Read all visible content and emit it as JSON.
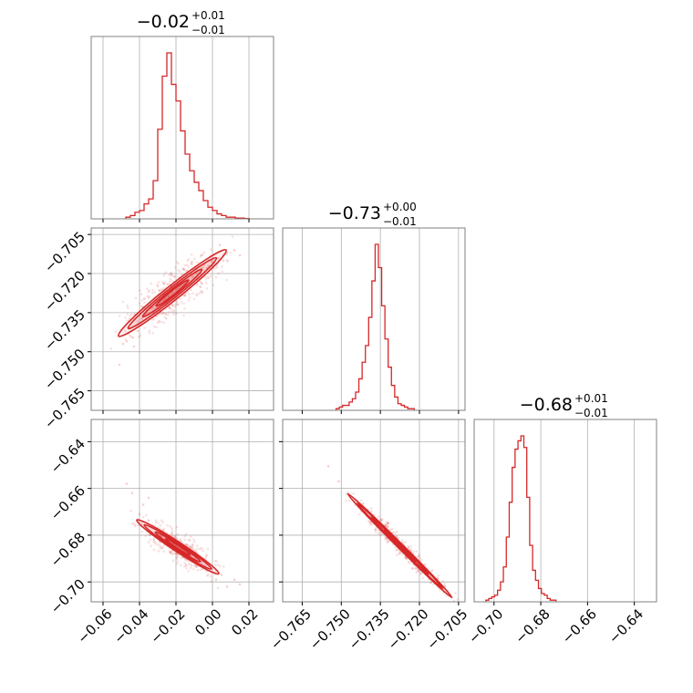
{
  "chart_data": {
    "type": "corner",
    "color": "#d62728",
    "titles": [
      {
        "value": "−0.02",
        "plus": "+0.01",
        "minus": "−0.01"
      },
      {
        "value": "−0.73",
        "plus": "+0.00",
        "minus": "−0.01"
      },
      {
        "value": "−0.68",
        "plus": "+0.01",
        "minus": "−0.01"
      }
    ],
    "params": [
      {
        "range": [
          -0.0665,
          0.0335
        ],
        "ticks": [
          -0.06,
          -0.04,
          -0.02,
          0.0,
          0.02
        ],
        "tick_labels": [
          "−0.06",
          "−0.04",
          "−0.02",
          "0.00",
          "0.02"
        ]
      },
      {
        "range": [
          -0.7725,
          -0.7025
        ],
        "ticks": [
          -0.765,
          -0.75,
          -0.735,
          -0.72,
          -0.705
        ],
        "tick_labels": [
          "−0.765",
          "−0.750",
          "−0.735",
          "−0.720",
          "−0.705"
        ]
      },
      {
        "range": [
          -0.7085,
          -0.6305
        ],
        "ticks": [
          -0.7,
          -0.68,
          -0.66,
          -0.64
        ],
        "tick_labels": [
          "−0.70",
          "−0.68",
          "−0.66",
          "−0.64"
        ]
      }
    ],
    "histograms": [
      {
        "edges_start": -0.0475,
        "bin_width": 0.0025,
        "counts": [
          0.01,
          0.02,
          0.04,
          0.05,
          0.09,
          0.12,
          0.23,
          0.54,
          0.86,
          1.0,
          0.81,
          0.71,
          0.53,
          0.39,
          0.29,
          0.22,
          0.17,
          0.11,
          0.07,
          0.05,
          0.03,
          0.02,
          0.01,
          0.01,
          0.005,
          0.005,
          0.002
        ]
      },
      {
        "edges_start": -0.752,
        "bin_width": 0.00125,
        "counts": [
          0.01,
          0.02,
          0.03,
          0.03,
          0.05,
          0.07,
          0.11,
          0.19,
          0.29,
          0.39,
          0.56,
          0.78,
          1.0,
          0.86,
          0.63,
          0.43,
          0.26,
          0.15,
          0.08,
          0.04,
          0.03,
          0.02,
          0.01,
          0.01
        ]
      },
      {
        "edges_start": -0.7035,
        "bin_width": 0.00125,
        "counts": [
          0.01,
          0.02,
          0.03,
          0.04,
          0.07,
          0.12,
          0.21,
          0.39,
          0.6,
          0.81,
          0.92,
          0.97,
          1.0,
          0.93,
          0.63,
          0.34,
          0.19,
          0.13,
          0.08,
          0.05,
          0.04,
          0.02,
          0.01,
          0.01
        ]
      }
    ],
    "pairs": [
      {
        "x_param": 0,
        "y_param": 1,
        "center": [
          -0.022,
          -0.7275
        ],
        "axis_dir": [
          0.0295,
          0.0165
        ],
        "half_length": 1.0,
        "half_width": 0.0022,
        "outliers": [
          [
            -0.047,
            -0.746
          ],
          [
            -0.045,
            -0.744
          ],
          [
            -0.051,
            -0.755
          ],
          [
            -0.049,
            -0.747
          ],
          [
            -0.006,
            -0.713
          ],
          [
            0.004,
            -0.709
          ],
          [
            0.008,
            -0.712
          ],
          [
            0.012,
            -0.711
          ],
          [
            0.001,
            -0.716
          ],
          [
            -0.003,
            -0.718
          ],
          [
            -0.041,
            -0.742
          ],
          [
            -0.043,
            -0.748
          ],
          [
            0.015,
            -0.713
          ],
          [
            0.006,
            -0.715
          ]
        ]
      },
      {
        "x_param": 0,
        "y_param": 2,
        "center": [
          -0.019,
          -0.685
        ],
        "axis_dir": [
          0.0225,
          -0.0115
        ],
        "half_length": 1.0,
        "half_width": 0.0016,
        "outliers": [
          [
            -0.047,
            -0.658
          ],
          [
            -0.044,
            -0.662
          ],
          [
            -0.038,
            -0.667
          ],
          [
            0.005,
            -0.697
          ],
          [
            0.012,
            -0.699
          ],
          [
            0.015,
            -0.701
          ],
          [
            0.008,
            -0.702
          ],
          [
            -0.04,
            -0.671
          ],
          [
            -0.035,
            -0.664
          ],
          [
            0.002,
            -0.699
          ]
        ]
      },
      {
        "x_param": 1,
        "y_param": 2,
        "center": [
          -0.7275,
          -0.6845
        ],
        "axis_dir": [
          0.02,
          -0.0222
        ],
        "half_length": 1.0,
        "half_width": 0.00035,
        "outliers": [
          [
            -0.755,
            -0.6505
          ],
          [
            -0.751,
            -0.657
          ],
          [
            -0.711,
            -0.703
          ],
          [
            -0.709,
            -0.705
          ],
          [
            -0.713,
            -0.701
          ]
        ]
      }
    ]
  }
}
